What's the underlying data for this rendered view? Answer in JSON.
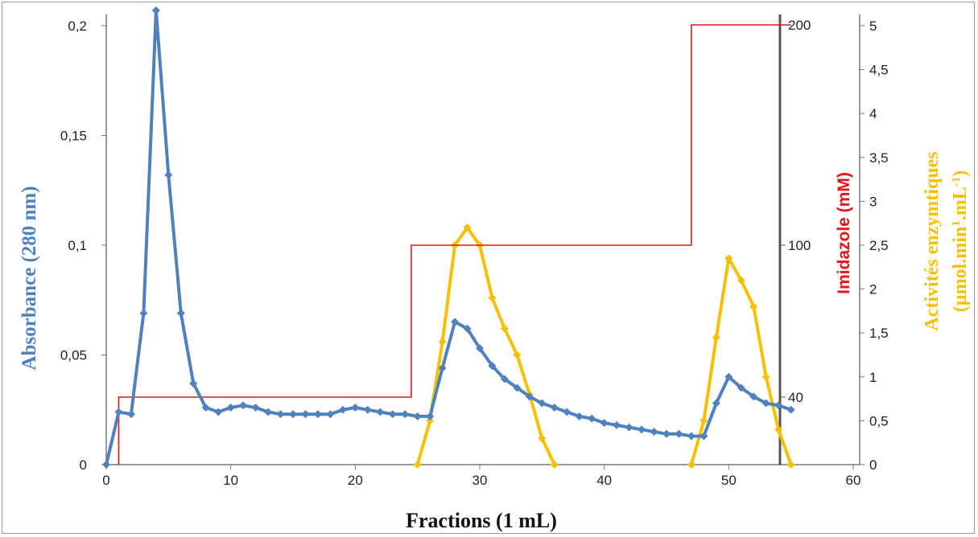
{
  "chart_data": {
    "type": "line",
    "xlabel": "Fractions (1 mL)",
    "xlim": [
      0,
      60
    ],
    "x_ticks": [
      "0",
      "10",
      "20",
      "30",
      "40",
      "50",
      "60"
    ],
    "axes": {
      "absorbance": {
        "label": "Absorbance (280 nm)",
        "range": [
          0,
          0.2
        ],
        "ticks": [
          "0",
          "0,05",
          "0,1",
          "0,15",
          "0,2"
        ],
        "side": "left",
        "color": "#4f81bd"
      },
      "imidazole": {
        "label": "Imidazole (mM)",
        "ticks": [
          "40",
          "100",
          "200"
        ],
        "side": "right-inner",
        "color": "#e8141c"
      },
      "activity": {
        "label_line1": "Activités enzymtiques",
        "label_line2": "(µmol.min",
        "label_sup1": "1",
        "label_mid": ".mL",
        "label_sup2": "-1",
        "label_end": ")",
        "range": [
          0,
          5
        ],
        "ticks": [
          "0",
          "0,5",
          "1",
          "1,5",
          "2",
          "2,5",
          "3",
          "3,5",
          "4",
          "4,5",
          "5"
        ],
        "side": "right-outer",
        "color": "#f5c000"
      }
    },
    "grid": false,
    "series": [
      {
        "axis": "absorbance",
        "color": "#4f81bd",
        "marker": "diamond",
        "x": [
          0,
          1,
          2,
          3,
          4,
          5,
          6,
          7,
          8,
          9,
          10,
          11,
          12,
          13,
          14,
          15,
          16,
          17,
          18,
          19,
          20,
          21,
          22,
          23,
          24,
          25,
          26,
          27,
          28,
          29,
          30,
          31,
          32,
          33,
          34,
          35,
          36,
          37,
          38,
          39,
          40,
          41,
          42,
          43,
          44,
          45,
          46,
          47,
          48,
          49,
          50,
          51,
          52,
          53,
          54,
          55
        ],
        "values": [
          0,
          0.024,
          0.023,
          0.069,
          0.207,
          0.132,
          0.069,
          0.037,
          0.026,
          0.024,
          0.026,
          0.027,
          0.026,
          0.024,
          0.023,
          0.023,
          0.023,
          0.023,
          0.023,
          0.025,
          0.026,
          0.025,
          0.024,
          0.023,
          0.023,
          0.022,
          0.022,
          0.044,
          0.065,
          0.062,
          0.053,
          0.045,
          0.039,
          0.035,
          0.031,
          0.028,
          0.026,
          0.024,
          0.022,
          0.021,
          0.019,
          0.018,
          0.017,
          0.016,
          0.015,
          0.014,
          0.014,
          0.013,
          0.013,
          0.028,
          0.04,
          0.035,
          0.031,
          0.028,
          0.027,
          0.025
        ]
      },
      {
        "axis": "activity",
        "color": "#f5c000",
        "marker": "diamond",
        "segments": [
          {
            "x": [
              25,
              26,
              27,
              28,
              29,
              30,
              31,
              32,
              33,
              34,
              35,
              36
            ],
            "values": [
              0,
              0.5,
              1.4,
              2.5,
              2.7,
              2.5,
              1.9,
              1.55,
              1.25,
              0.8,
              0.3,
              0
            ]
          },
          {
            "x": [
              47,
              48,
              49,
              50,
              51,
              52,
              53,
              54,
              55
            ],
            "values": [
              0,
              0.5,
              1.45,
              2.35,
              2.1,
              1.8,
              1.0,
              0.4,
              0
            ]
          }
        ]
      },
      {
        "axis": "imidazole",
        "color": "#e8141c",
        "style": "step",
        "x": [
          1,
          1,
          24.5,
          24.5,
          47,
          47,
          55
        ],
        "values": [
          0,
          40,
          40,
          100,
          100,
          200,
          200
        ]
      }
    ]
  }
}
